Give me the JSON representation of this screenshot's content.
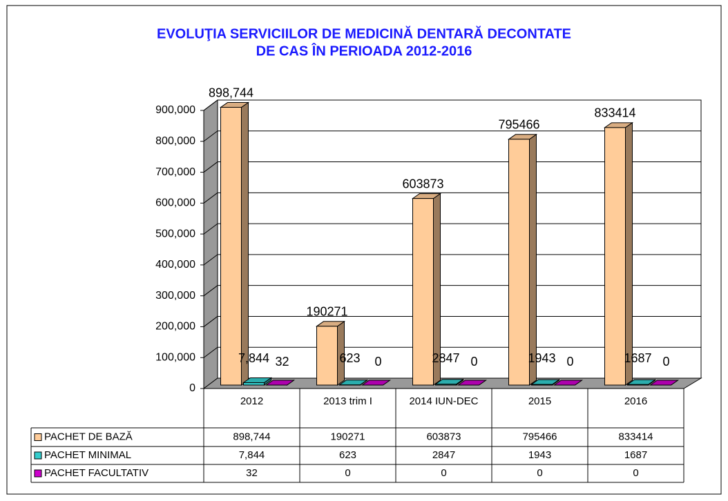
{
  "chart_data": {
    "type": "bar3d",
    "title": [
      "EVOLUŢIA SERVICIILOR DE MEDICINĂ DENTARĂ DECONTATE",
      "DE CAS ÎN PERIOADA 2012-2016"
    ],
    "categories": [
      "2012",
      "2013 trim I",
      "2014 IUN-DEC",
      "2015",
      "2016"
    ],
    "series": [
      {
        "name": "PACHET DE BAZĂ",
        "color": "#ffcc99",
        "values": [
          898744,
          190271,
          603873,
          795466,
          833414
        ],
        "value_labels": [
          "898,744",
          "190271",
          "603873",
          "795466",
          "833414"
        ]
      },
      {
        "name": "PACHET MINIMAL",
        "color": "#33cccc",
        "values": [
          7844,
          623,
          2847,
          1943,
          1687
        ],
        "value_labels": [
          "7,844",
          "623",
          "2847",
          "1943",
          "1687"
        ]
      },
      {
        "name": "PACHET FACULTATIV",
        "color": "#cc00cc",
        "values": [
          32,
          0,
          0,
          0,
          0
        ]
      }
    ],
    "ylim": [
      0,
      900000
    ],
    "yticks": [
      0,
      {
        "value": 100000,
        "label": "100,000"
      },
      {
        "value": 200000,
        "label": "200,000"
      },
      {
        "value": 300000,
        "label": "300,000"
      },
      {
        "value": 400000,
        "label": "400,000"
      },
      {
        "value": 500000,
        "label": "500,000"
      },
      {
        "value": 600000,
        "label": "600,000"
      },
      {
        "value": 700000,
        "label": "700,000"
      },
      {
        "value": 800000,
        "label": "800,000"
      },
      {
        "value": 900000,
        "label": "900,000"
      }
    ],
    "grid": true,
    "data_table": true
  }
}
